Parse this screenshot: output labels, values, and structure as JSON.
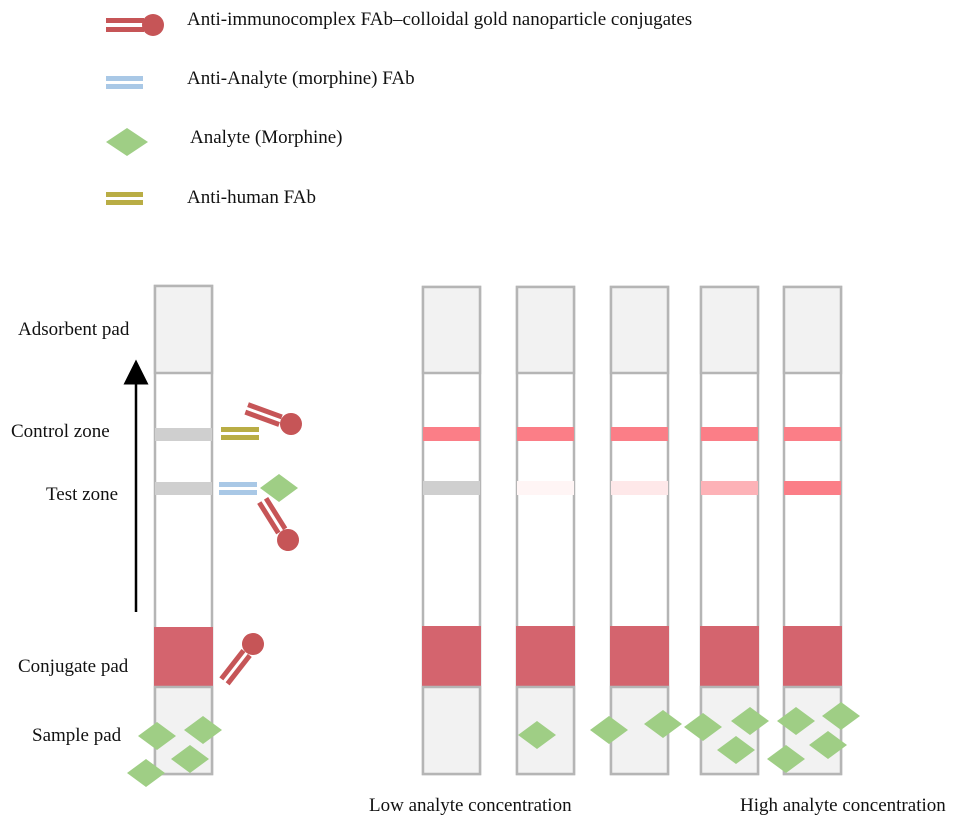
{
  "legend": {
    "gold_conjugate": "Anti-immunocomplex FAb–colloidal gold nanoparticle conjugates",
    "anti_analyte_fab": "Anti-Analyte (morphine) FAb",
    "analyte": "Analyte (Morphine)",
    "anti_human_fab": "Anti-human FAb"
  },
  "zones": {
    "adsorbent_pad": "Adsorbent pad",
    "control_zone": "Control zone",
    "test_zone": "Test zone",
    "conjugate_pad": "Conjugate pad",
    "sample_pad": "Sample pad"
  },
  "footer": {
    "low": "Low analyte concentration",
    "high": "High analyte concentration"
  },
  "colors": {
    "strip_border": "#b5b5b5",
    "pad_fill": "#f2f2f2",
    "conjugate_pad": "#d4646e",
    "gold_conjugate": "#c65557",
    "anti_analyte_fab": "#a9c8e6",
    "analyte": "#9fce85",
    "anti_human_fab": "#b9ad45",
    "line_inactive": "#cfcfcf",
    "line_active": "#fb7e87"
  },
  "strips": [
    {
      "control_intensity": 1.0,
      "test_intensity": 0.0,
      "analyte_count": 0
    },
    {
      "control_intensity": 1.0,
      "test_intensity": 0.08,
      "analyte_count": 1
    },
    {
      "control_intensity": 1.0,
      "test_intensity": 0.18,
      "analyte_count": 2
    },
    {
      "control_intensity": 1.0,
      "test_intensity": 0.6,
      "analyte_count": 3
    },
    {
      "control_intensity": 1.0,
      "test_intensity": 1.0,
      "analyte_count": 4
    }
  ]
}
